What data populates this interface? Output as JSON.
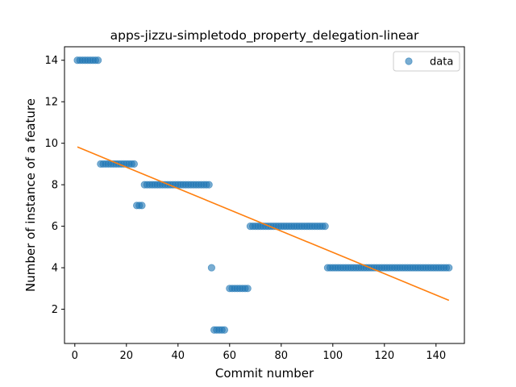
{
  "chart_data": {
    "type": "scatter",
    "title": "apps-jizzu-simpletodo_property_delegation-linear",
    "xlabel": "Commit number",
    "ylabel": "Number of instance of a feature",
    "xlim": [
      -4,
      151
    ],
    "ylim": [
      0.35,
      14.65
    ],
    "xticks": [
      0,
      20,
      40,
      60,
      80,
      100,
      120,
      140
    ],
    "yticks": [
      2,
      4,
      6,
      8,
      10,
      12,
      14
    ],
    "grid": false,
    "legend_position": "top-right",
    "series": [
      {
        "name": "data",
        "kind": "points",
        "color": "#1f77b4",
        "points": [
          [
            1,
            14
          ],
          [
            2,
            14
          ],
          [
            3,
            14
          ],
          [
            4,
            14
          ],
          [
            5,
            14
          ],
          [
            6,
            14
          ],
          [
            7,
            14
          ],
          [
            8,
            14
          ],
          [
            9,
            14
          ],
          [
            10,
            9
          ],
          [
            11,
            9
          ],
          [
            12,
            9
          ],
          [
            13,
            9
          ],
          [
            14,
            9
          ],
          [
            15,
            9
          ],
          [
            16,
            9
          ],
          [
            17,
            9
          ],
          [
            18,
            9
          ],
          [
            19,
            9
          ],
          [
            20,
            9
          ],
          [
            21,
            9
          ],
          [
            22,
            9
          ],
          [
            23,
            9
          ],
          [
            24,
            7
          ],
          [
            25,
            7
          ],
          [
            26,
            7
          ],
          [
            27,
            8
          ],
          [
            28,
            8
          ],
          [
            29,
            8
          ],
          [
            30,
            8
          ],
          [
            31,
            8
          ],
          [
            32,
            8
          ],
          [
            33,
            8
          ],
          [
            34,
            8
          ],
          [
            35,
            8
          ],
          [
            36,
            8
          ],
          [
            37,
            8
          ],
          [
            38,
            8
          ],
          [
            39,
            8
          ],
          [
            40,
            8
          ],
          [
            41,
            8
          ],
          [
            42,
            8
          ],
          [
            43,
            8
          ],
          [
            44,
            8
          ],
          [
            45,
            8
          ],
          [
            46,
            8
          ],
          [
            47,
            8
          ],
          [
            48,
            8
          ],
          [
            49,
            8
          ],
          [
            50,
            8
          ],
          [
            51,
            8
          ],
          [
            52,
            8
          ],
          [
            53,
            4
          ],
          [
            54,
            1
          ],
          [
            55,
            1
          ],
          [
            56,
            1
          ],
          [
            57,
            1
          ],
          [
            58,
            1
          ],
          [
            60,
            3
          ],
          [
            61,
            3
          ],
          [
            62,
            3
          ],
          [
            63,
            3
          ],
          [
            64,
            3
          ],
          [
            65,
            3
          ],
          [
            66,
            3
          ],
          [
            67,
            3
          ],
          [
            68,
            6
          ],
          [
            69,
            6
          ],
          [
            70,
            6
          ],
          [
            71,
            6
          ],
          [
            72,
            6
          ],
          [
            73,
            6
          ],
          [
            74,
            6
          ],
          [
            75,
            6
          ],
          [
            76,
            6
          ],
          [
            77,
            6
          ],
          [
            78,
            6
          ],
          [
            79,
            6
          ],
          [
            80,
            6
          ],
          [
            81,
            6
          ],
          [
            82,
            6
          ],
          [
            83,
            6
          ],
          [
            84,
            6
          ],
          [
            85,
            6
          ],
          [
            86,
            6
          ],
          [
            87,
            6
          ],
          [
            88,
            6
          ],
          [
            89,
            6
          ],
          [
            90,
            6
          ],
          [
            91,
            6
          ],
          [
            92,
            6
          ],
          [
            93,
            6
          ],
          [
            94,
            6
          ],
          [
            95,
            6
          ],
          [
            96,
            6
          ],
          [
            97,
            6
          ],
          [
            98,
            4
          ],
          [
            99,
            4
          ],
          [
            100,
            4
          ],
          [
            101,
            4
          ],
          [
            102,
            4
          ],
          [
            103,
            4
          ],
          [
            104,
            4
          ],
          [
            105,
            4
          ],
          [
            106,
            4
          ],
          [
            107,
            4
          ],
          [
            108,
            4
          ],
          [
            109,
            4
          ],
          [
            110,
            4
          ],
          [
            111,
            4
          ],
          [
            112,
            4
          ],
          [
            113,
            4
          ],
          [
            114,
            4
          ],
          [
            115,
            4
          ],
          [
            116,
            4
          ],
          [
            117,
            4
          ],
          [
            118,
            4
          ],
          [
            119,
            4
          ],
          [
            120,
            4
          ],
          [
            121,
            4
          ],
          [
            122,
            4
          ],
          [
            123,
            4
          ],
          [
            124,
            4
          ],
          [
            125,
            4
          ],
          [
            126,
            4
          ],
          [
            127,
            4
          ],
          [
            128,
            4
          ],
          [
            129,
            4
          ],
          [
            130,
            4
          ],
          [
            131,
            4
          ],
          [
            132,
            4
          ],
          [
            133,
            4
          ],
          [
            134,
            4
          ],
          [
            135,
            4
          ],
          [
            136,
            4
          ],
          [
            137,
            4
          ],
          [
            138,
            4
          ],
          [
            139,
            4
          ],
          [
            140,
            4
          ],
          [
            141,
            4
          ],
          [
            142,
            4
          ],
          [
            143,
            4
          ],
          [
            144,
            4
          ],
          [
            145,
            4
          ]
        ]
      },
      {
        "name": "",
        "kind": "line",
        "color": "#ff7f0e",
        "points": [
          [
            1,
            9.82
          ],
          [
            145,
            2.43
          ]
        ]
      }
    ]
  }
}
